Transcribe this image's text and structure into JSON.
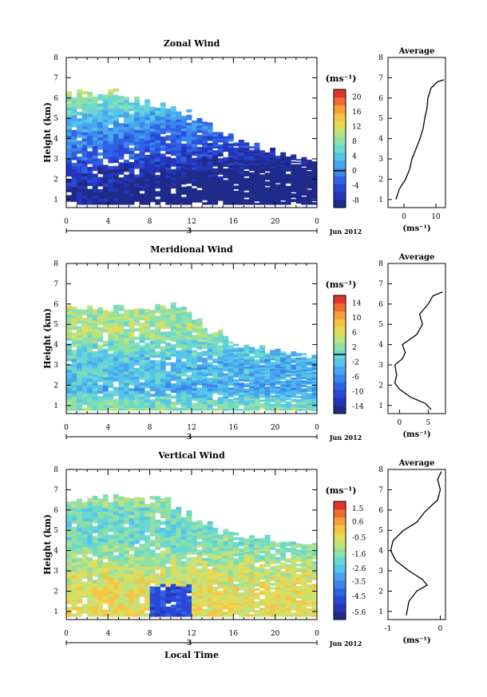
{
  "common": {
    "x_ticks": [
      "0",
      "4",
      "8",
      "12",
      "16",
      "20",
      "0"
    ],
    "day_label": "3",
    "date_label": "Jun 2012",
    "ylabel": "Height (km)",
    "xlabel": "Local Time",
    "avg_title": "Average",
    "unit": "(ms⁻¹)",
    "y_ticks": [
      "1",
      "2",
      "3",
      "4",
      "5",
      "6",
      "7",
      "8"
    ]
  },
  "chart_data": [
    {
      "type": "heatmap",
      "title": "Zonal Wind",
      "ylabel": "Height (km)",
      "colorbar_label": "(ms⁻¹)",
      "colorbar_ticks": [
        "20",
        "16",
        "12",
        "8",
        "4",
        "0",
        "-4",
        "-8"
      ],
      "colorbar_range": [
        -10,
        22
      ],
      "zero_line": true,
      "x_range_hours": [
        0,
        24
      ],
      "ylim": [
        0.6,
        8.0
      ],
      "pattern": {
        "top_km": [
          6.2,
          6.3,
          6.2,
          6.0,
          6.3,
          6.0,
          5.9,
          5.8,
          5.7,
          5.6,
          5.5,
          5.3,
          5.0,
          4.8,
          4.5,
          4.2,
          4.0,
          3.8,
          3.6,
          3.4,
          3.3,
          3.2,
          3.0,
          2.9,
          2.8
        ],
        "profile": [
          [
            0.8,
            -9
          ],
          [
            1.5,
            -8
          ],
          [
            2.3,
            -6
          ],
          [
            3.0,
            -3
          ],
          [
            3.6,
            -1
          ],
          [
            4.3,
            1
          ],
          [
            5.0,
            4
          ],
          [
            5.8,
            8
          ],
          [
            6.5,
            12
          ]
        ],
        "trend": -0.25
      },
      "average_profile": {
        "xlabel": "(ms⁻¹)",
        "xlim": [
          -5,
          13
        ],
        "x_ticks": [
          "0",
          "10"
        ],
        "x_tick_values": [
          0,
          10
        ],
        "points": [
          [
            -2.5,
            1.0
          ],
          [
            -1.5,
            1.5
          ],
          [
            0.5,
            2.0
          ],
          [
            1.8,
            2.5
          ],
          [
            2.5,
            3.0
          ],
          [
            3.8,
            3.5
          ],
          [
            5.0,
            4.0
          ],
          [
            6.0,
            4.5
          ],
          [
            6.5,
            5.0
          ],
          [
            7.2,
            5.5
          ],
          [
            7.5,
            6.0
          ],
          [
            8.5,
            6.5
          ],
          [
            10.5,
            6.8
          ],
          [
            12.5,
            6.9
          ]
        ]
      }
    },
    {
      "type": "heatmap",
      "title": "Meridional Wind",
      "ylabel": "Height (km)",
      "colorbar_label": "(ms⁻¹)",
      "colorbar_ticks": [
        "14",
        "10",
        "6",
        "2",
        "-2",
        "-6",
        "-10",
        "-14"
      ],
      "colorbar_range": [
        -16,
        16
      ],
      "zero_line": true,
      "x_range_hours": [
        0,
        24
      ],
      "ylim": [
        0.6,
        8.0
      ],
      "pattern": {
        "top_km": [
          5.9,
          5.9,
          5.9,
          5.9,
          5.9,
          5.9,
          5.9,
          5.9,
          5.9,
          5.9,
          5.9,
          5.8,
          5.2,
          4.8,
          4.6,
          4.3,
          4.0,
          3.9,
          3.8,
          3.7,
          3.6,
          3.5,
          3.4,
          3.3,
          3.0
        ],
        "profile": [
          [
            0.8,
            3
          ],
          [
            1.3,
            1
          ],
          [
            1.8,
            -3
          ],
          [
            2.5,
            -1
          ],
          [
            3.0,
            -2
          ],
          [
            3.5,
            0
          ],
          [
            4.0,
            1
          ],
          [
            4.5,
            4
          ],
          [
            5.0,
            4
          ],
          [
            5.5,
            3
          ],
          [
            6.0,
            4
          ]
        ],
        "trend": -0.1
      },
      "average_profile": {
        "xlabel": "(ms⁻¹)",
        "xlim": [
          -2,
          8
        ],
        "x_ticks": [
          "0",
          "5"
        ],
        "x_tick_values": [
          0,
          5
        ],
        "points": [
          [
            5.5,
            0.8
          ],
          [
            4.5,
            1.1
          ],
          [
            2.0,
            1.4
          ],
          [
            0.0,
            1.8
          ],
          [
            -0.8,
            2.1
          ],
          [
            -0.5,
            2.5
          ],
          [
            -0.8,
            3.0
          ],
          [
            0.5,
            3.3
          ],
          [
            1.0,
            3.6
          ],
          [
            0.5,
            4.0
          ],
          [
            3.0,
            4.5
          ],
          [
            4.0,
            5.0
          ],
          [
            3.5,
            5.5
          ],
          [
            5.0,
            6.0
          ],
          [
            5.8,
            6.4
          ],
          [
            7.5,
            6.6
          ]
        ]
      }
    },
    {
      "type": "heatmap",
      "title": "Vertical Wind",
      "ylabel": "Height (km)",
      "xlabel": "Local Time",
      "colorbar_label": "(ms⁻¹)",
      "colorbar_ticks": [
        "1.5",
        "0.6",
        "-0.5",
        "-1.6",
        "-2.6",
        "-3.5",
        "-4.5",
        "-5.6"
      ],
      "colorbar_range": [
        -6.1,
        2.0
      ],
      "zero_line": false,
      "x_range_hours": [
        0,
        24
      ],
      "ylim": [
        0.6,
        8.0
      ],
      "pattern": {
        "top_km": [
          6.3,
          6.5,
          6.6,
          6.6,
          6.7,
          6.7,
          6.6,
          6.5,
          6.6,
          6.5,
          6.0,
          5.8,
          5.5,
          5.3,
          5.0,
          4.9,
          4.8,
          4.7,
          4.6,
          4.6,
          4.5,
          4.5,
          4.4,
          4.4,
          4.3
        ],
        "profile": [
          [
            0.8,
            -0.4
          ],
          [
            2.0,
            -0.5
          ],
          [
            3.0,
            -0.8
          ],
          [
            3.6,
            -1.3
          ],
          [
            4.3,
            -1.8
          ],
          [
            5.0,
            -2.0
          ],
          [
            6.0,
            -1.9
          ],
          [
            6.6,
            -1.4
          ]
        ],
        "trend": 0.0
      },
      "average_profile": {
        "xlabel": "(ms⁻¹)",
        "xlim": [
          -1,
          0.1
        ],
        "x_ticks": [
          "-1",
          "0"
        ],
        "x_tick_values": [
          -1,
          0
        ],
        "points": [
          [
            -0.65,
            0.8
          ],
          [
            -0.6,
            1.5
          ],
          [
            -0.45,
            2.0
          ],
          [
            -0.25,
            2.3
          ],
          [
            -0.35,
            2.6
          ],
          [
            -0.6,
            3.0
          ],
          [
            -0.85,
            3.5
          ],
          [
            -0.95,
            4.0
          ],
          [
            -0.9,
            4.5
          ],
          [
            -0.7,
            5.0
          ],
          [
            -0.45,
            5.4
          ],
          [
            -0.3,
            5.9
          ],
          [
            -0.05,
            6.5
          ],
          [
            0.0,
            7.0
          ],
          [
            -0.05,
            7.5
          ],
          [
            0.02,
            7.9
          ]
        ]
      }
    }
  ]
}
